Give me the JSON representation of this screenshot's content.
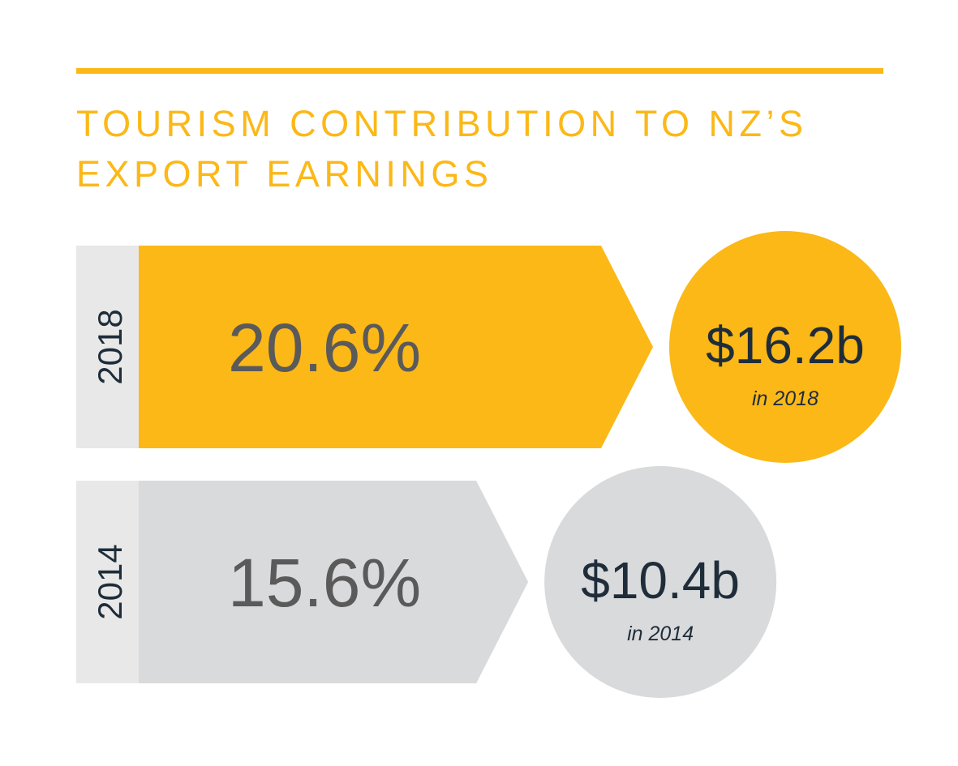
{
  "chart_data": {
    "type": "arrow-bar",
    "title": "TOURISM CONTRIBUTION TO NZ’S EXPORT EARNINGS",
    "categories": [
      "2018",
      "2014"
    ],
    "values": [
      20.6,
      15.6
    ],
    "value_labels": [
      "20.6%",
      "15.6%"
    ],
    "colors": [
      "#fbb817",
      "#d9dadb"
    ],
    "earnings": {
      "values": [
        16.2,
        10.4
      ],
      "value_labels": [
        "$16.2b",
        "$10.4b"
      ],
      "notes": [
        "in 2018",
        "in 2014"
      ]
    }
  }
}
